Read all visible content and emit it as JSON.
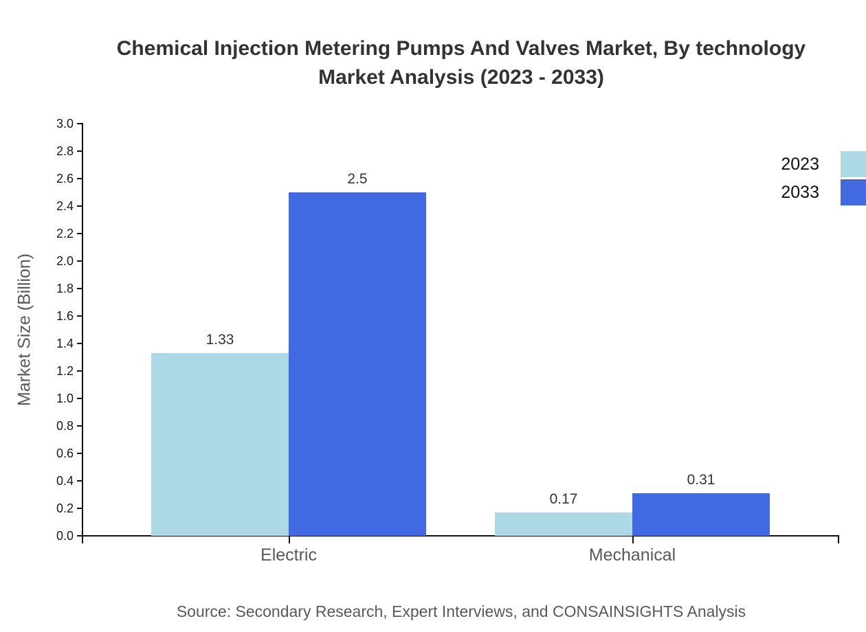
{
  "chart_data": {
    "type": "bar",
    "title_lines": [
      "Chemical Injection Metering Pumps And Valves Market, By technology",
      "Market Analysis (2023 - 2033)"
    ],
    "ylabel": "Market Size (Billion)",
    "xlabel": "",
    "categories": [
      "Electric",
      "Mechanical"
    ],
    "series": [
      {
        "name": "2023",
        "color": "#ADD8E6",
        "values": [
          1.33,
          0.17
        ],
        "value_labels": [
          "1.33",
          "0.17"
        ]
      },
      {
        "name": "2033",
        "color": "#4169E1",
        "values": [
          2.5,
          0.31
        ],
        "value_labels": [
          "2.5",
          "0.31"
        ]
      }
    ],
    "ylim": [
      0,
      3.0
    ],
    "ytick_step": 0.2,
    "ytick_labels": [
      "0.0",
      "0.2",
      "0.4",
      "0.6",
      "0.8",
      "1.0",
      "1.2",
      "1.4",
      "1.6",
      "1.8",
      "2.0",
      "2.2",
      "2.4",
      "2.6",
      "2.8",
      "3.0"
    ],
    "grid": false,
    "legend_position": "top-right",
    "source_note": "Source: Secondary Research, Expert Interviews, and CONSAINSIGHTS Analysis"
  },
  "colors": {
    "background": "#ffffff",
    "axis_line": "#111111",
    "title_text": "#333333",
    "tick_label_text": "#1a1a1a",
    "category_label_text": "#595959",
    "axis_label_text": "#595959",
    "value_label_text": "#333333",
    "source_text": "#595959",
    "series_2023": "#ADD8E6",
    "series_2033": "#4169E1"
  }
}
